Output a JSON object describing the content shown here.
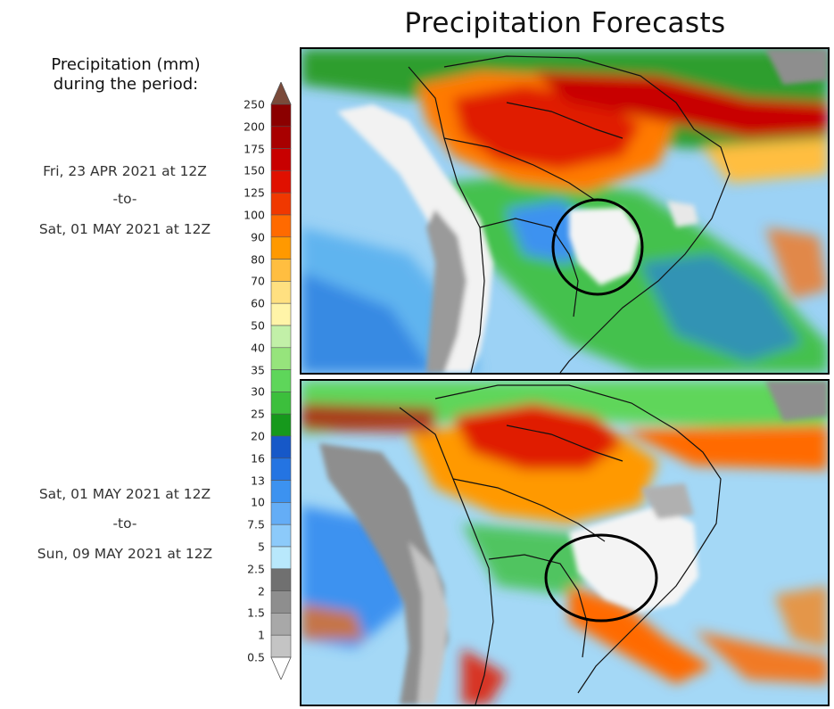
{
  "title": "Precipitation Forecasts",
  "legend": {
    "title_line1": "Precipitation (mm)",
    "title_line2": "during the period:",
    "levels": [
      {
        "label": "250",
        "color": "#7a4a3a"
      },
      {
        "label": "200",
        "color": "#8b0000"
      },
      {
        "label": "175",
        "color": "#a80000"
      },
      {
        "label": "150",
        "color": "#c80000"
      },
      {
        "label": "125",
        "color": "#e01000"
      },
      {
        "label": "100",
        "color": "#f03800"
      },
      {
        "label": "90",
        "color": "#ff6a00"
      },
      {
        "label": "80",
        "color": "#ff9900"
      },
      {
        "label": "70",
        "color": "#ffbe40"
      },
      {
        "label": "60",
        "color": "#ffe080"
      },
      {
        "label": "50",
        "color": "#fff4a8"
      },
      {
        "label": "40",
        "color": "#c2f0a8"
      },
      {
        "label": "35",
        "color": "#96e47c"
      },
      {
        "label": "30",
        "color": "#5ed65a"
      },
      {
        "label": "25",
        "color": "#3cbf3c"
      },
      {
        "label": "20",
        "color": "#16991c"
      },
      {
        "label": "16",
        "color": "#1658c8"
      },
      {
        "label": "13",
        "color": "#2474e2"
      },
      {
        "label": "10",
        "color": "#3c92f0"
      },
      {
        "label": "7.5",
        "color": "#64adf6"
      },
      {
        "label": "5",
        "color": "#8ccafa"
      },
      {
        "label": "2.5",
        "color": "#b8e8fc"
      },
      {
        "label": "2",
        "color": "#707070"
      },
      {
        "label": "1.5",
        "color": "#8e8e8e"
      },
      {
        "label": "1",
        "color": "#a8a8a8"
      },
      {
        "label": "0.5",
        "color": "#c4c4c4"
      }
    ]
  },
  "periods": [
    {
      "start": "Fri, 23 APR 2021 at 12Z",
      "sep": "-to-",
      "end": "Sat, 01 MAY 2021 at 12Z"
    },
    {
      "start": "Sat, 01 MAY 2021 at 12Z",
      "sep": "-to-",
      "end": "Sun, 09 MAY 2021 at 12Z"
    }
  ]
}
